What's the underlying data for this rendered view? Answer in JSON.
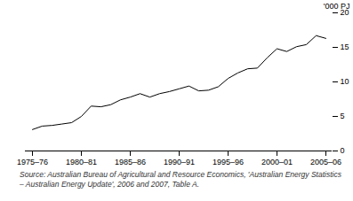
{
  "chart_data": {
    "type": "line",
    "y_label": "'000 PJ",
    "caption": "Source: Australian Bureau of Agricultural and Resource Economics, 'Australian Energy Statistics – Australian Energy Update', 2006 and 2007, Table A.",
    "categories": [
      "1975–76",
      null,
      null,
      null,
      null,
      "1980–81",
      null,
      null,
      null,
      null,
      "1985–86",
      null,
      null,
      null,
      null,
      "1990–91",
      null,
      null,
      null,
      null,
      "1995–96",
      null,
      null,
      null,
      null,
      "2000–01",
      null,
      null,
      null,
      null,
      "2005–06"
    ],
    "values": [
      3.1,
      3.6,
      3.7,
      3.9,
      4.1,
      5.0,
      6.5,
      6.4,
      6.7,
      7.4,
      7.8,
      8.3,
      7.8,
      8.3,
      8.6,
      9.0,
      9.4,
      8.7,
      8.8,
      9.3,
      10.5,
      11.3,
      11.9,
      12.0,
      13.5,
      14.8,
      14.4,
      15.1,
      15.4,
      16.7,
      16.3
    ],
    "color": "#000000",
    "ylim": [
      0,
      20
    ],
    "yticks": [
      0,
      5,
      10,
      15,
      20
    ],
    "grid": false
  }
}
